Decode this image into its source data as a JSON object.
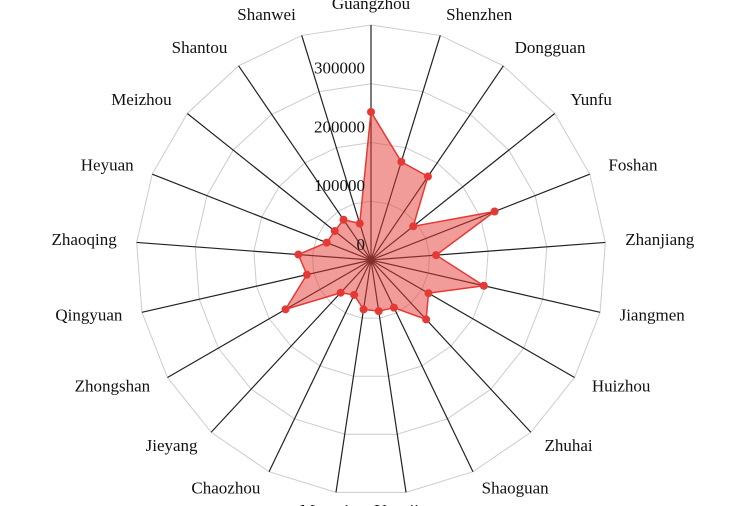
{
  "chart_data": {
    "type": "radar",
    "categories": [
      "Guangzhou",
      "Shenzhen",
      "Dongguan",
      "Yunfu",
      "Foshan",
      "Zhanjiang",
      "Jiangmen",
      "Huizhou",
      "Zhuhai",
      "Shaoguan",
      "Yangjiang",
      "Maoming",
      "Chaozhou",
      "Jieyang",
      "Zhongshan",
      "Qingyuan",
      "Zhaoqing",
      "Heyuan",
      "Meizhou",
      "Shantou",
      "Shanwei"
    ],
    "series": [
      {
        "color": "#e53935",
        "values": [
          252000,
          175000,
          172000,
          92000,
          226000,
          111000,
          197000,
          113000,
          138000,
          90000,
          88000,
          85000,
          66000,
          76000,
          168000,
          112000,
          124000,
          81000,
          79000,
          83000,
          65000
        ]
      }
    ],
    "ylim": [
      0,
      400000
    ],
    "yticks": [
      0,
      100000,
      200000,
      300000
    ],
    "grid": true
  }
}
